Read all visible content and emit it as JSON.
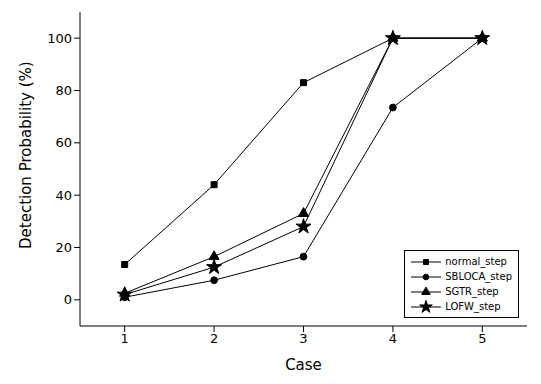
{
  "chart_data": {
    "type": "line",
    "x_label": "Case",
    "y_label": "Detection Probability (%)",
    "x": [
      1,
      2,
      3,
      4,
      5
    ],
    "xlim": [
      0.5,
      5.5
    ],
    "xticks": [
      1,
      2,
      3,
      4,
      5
    ],
    "ylim": [
      -10,
      110
    ],
    "yticks": [
      0,
      20,
      40,
      60,
      80,
      100
    ],
    "grid": false,
    "legend": "lower right",
    "series": [
      {
        "name": "normal_step",
        "color": "#000000",
        "marker": "square",
        "values": [
          13.5,
          44,
          83,
          100,
          100
        ]
      },
      {
        "name": "SBLOCA_step",
        "color": "#000000",
        "marker": "circle",
        "values": [
          1,
          7.5,
          16.5,
          73.5,
          100
        ]
      },
      {
        "name": "SGTR_step",
        "color": "#000000",
        "marker": "triangle",
        "values": [
          2.5,
          16.5,
          33,
          100,
          100
        ]
      },
      {
        "name": "LOFW_step",
        "color": "#000000",
        "marker": "star",
        "values": [
          2,
          12.5,
          28,
          100,
          100
        ]
      }
    ]
  }
}
